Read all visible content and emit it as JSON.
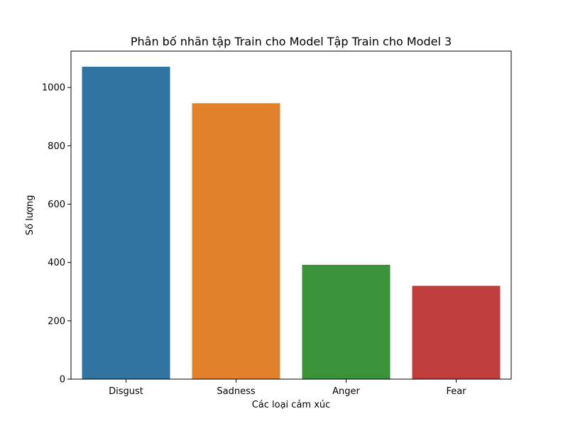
{
  "chart_data": {
    "type": "bar",
    "title": "Phân bố nhãn tập Train cho Model Tập Train cho Model 3",
    "xlabel": "Các loại cảm xúc",
    "ylabel": "Số lượng",
    "categories": [
      "Disgust",
      "Sadness",
      "Anger",
      "Fear"
    ],
    "values": [
      1071,
      946,
      392,
      320
    ],
    "colors": [
      "#3274a1",
      "#e1812c",
      "#3a923a",
      "#c03d3e"
    ],
    "ylim": [
      0,
      1124.55
    ],
    "yticks": [
      0,
      200,
      400,
      600,
      800,
      1000
    ],
    "grid": false,
    "legend": "none"
  }
}
